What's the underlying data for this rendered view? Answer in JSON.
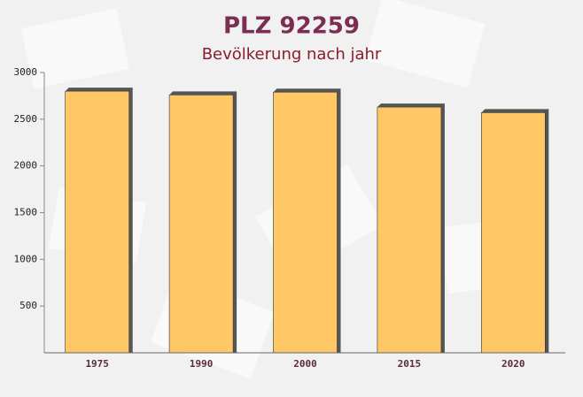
{
  "chart_data": {
    "type": "bar",
    "title": "PLZ 92259",
    "subtitle": "Bevölkerung nach jahr",
    "categories": [
      "1975",
      "1990",
      "2000",
      "2015",
      "2020"
    ],
    "values": [
      2800,
      2760,
      2790,
      2630,
      2570
    ],
    "color": "#ffc766",
    "ylim": [
      0,
      3000
    ],
    "yticks": [
      500,
      1000,
      1500,
      2000,
      2500,
      3000
    ],
    "grid": false
  }
}
